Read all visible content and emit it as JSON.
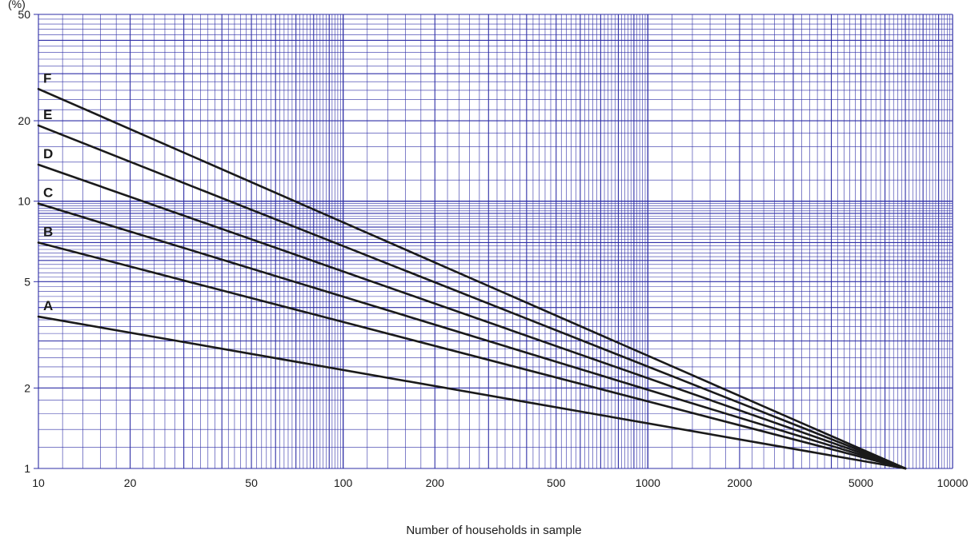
{
  "chart_data": {
    "type": "line",
    "title": "",
    "xlabel": "Number of households in sample",
    "ylabel": "(%)",
    "x_scale": "log",
    "y_scale": "log",
    "xlim": [
      10,
      10000
    ],
    "ylim": [
      1,
      50
    ],
    "grid": true,
    "x_ticks": [
      10,
      20,
      50,
      100,
      200,
      500,
      1000,
      2000,
      5000,
      10000
    ],
    "x_tick_labels": [
      "10",
      "20",
      "50",
      "100",
      "200",
      "500",
      "1000",
      "2000",
      "5000",
      "10000"
    ],
    "y_ticks": [
      1,
      2,
      5,
      10,
      20,
      50
    ],
    "y_tick_labels": [
      "1",
      "2",
      "5",
      "10",
      "20",
      "50"
    ],
    "series": [
      {
        "name": "A",
        "x": [
          10,
          7000
        ],
        "y": [
          3.7,
          1
        ]
      },
      {
        "name": "B",
        "x": [
          10,
          7000
        ],
        "y": [
          7.0,
          1
        ]
      },
      {
        "name": "C",
        "x": [
          10,
          7000
        ],
        "y": [
          9.8,
          1
        ]
      },
      {
        "name": "D",
        "x": [
          10,
          7000
        ],
        "y": [
          13.7,
          1
        ]
      },
      {
        "name": "E",
        "x": [
          10,
          7000
        ],
        "y": [
          19.2,
          1
        ]
      },
      {
        "name": "F",
        "x": [
          10,
          7000
        ],
        "y": [
          26.3,
          1
        ]
      }
    ],
    "colors": {
      "grid": "#2e2ea6",
      "line": "#1a1a1a"
    }
  }
}
